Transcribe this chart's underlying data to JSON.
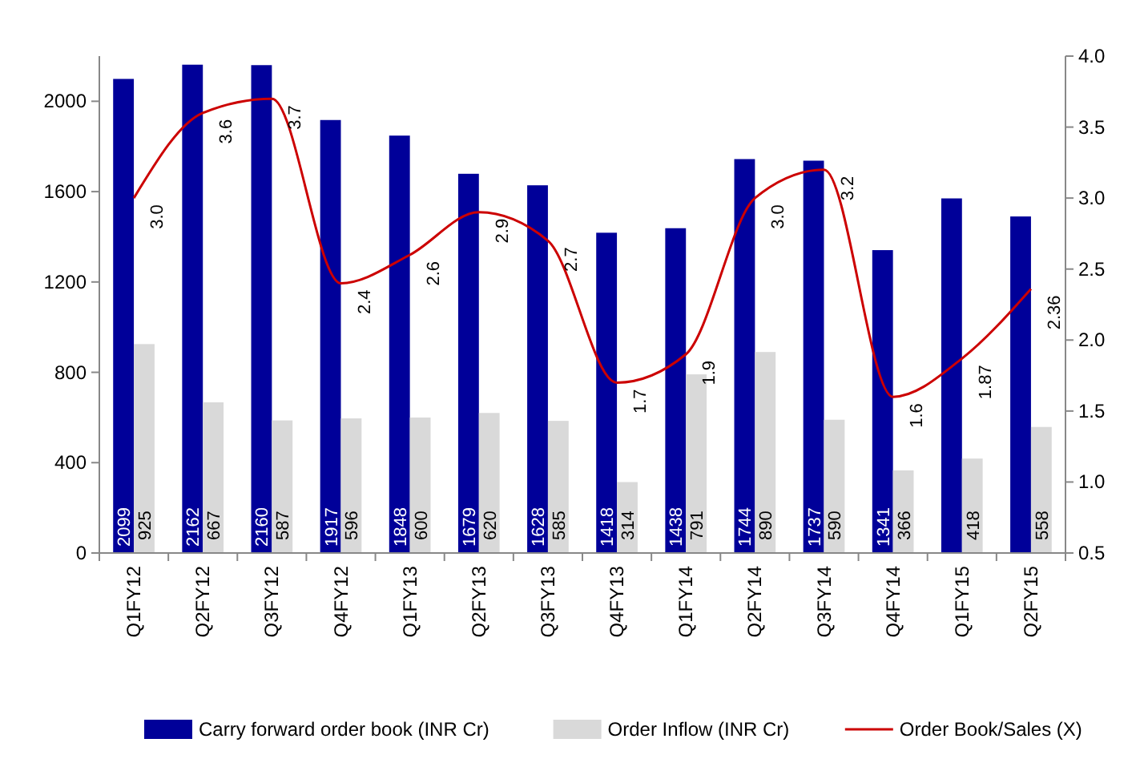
{
  "chart_data": {
    "type": "bar",
    "categories": [
      "Q1FY12",
      "Q2FY12",
      "Q3FY12",
      "Q4FY12",
      "Q1FY13",
      "Q2FY13",
      "Q3FY13",
      "Q4FY13",
      "Q1FY14",
      "Q2FY14",
      "Q3FY14",
      "Q4FY14",
      "Q1FY15",
      "Q2FY15"
    ],
    "series": [
      {
        "name": "Carry forward order book (INR Cr)",
        "color": "#000099",
        "values": [
          2099,
          2162,
          2160,
          1917,
          1848,
          1679,
          1628,
          1418,
          1438,
          1744,
          1737,
          1341,
          1570,
          1490
        ],
        "value_labels": [
          "2099",
          "2162",
          "2160",
          "1917",
          "1848",
          "1679",
          "1628",
          "1418",
          "1438",
          "1744",
          "1737",
          "1341",
          null,
          null
        ]
      },
      {
        "name": "Order Inflow (INR Cr)",
        "color": "#d9d9d9",
        "values": [
          925,
          667,
          587,
          596,
          600,
          620,
          585,
          314,
          791,
          890,
          590,
          366,
          418,
          558
        ],
        "value_labels": [
          "925",
          "667",
          "587",
          "596",
          "600",
          "620",
          "585",
          "314",
          "791",
          "890",
          "590",
          "366",
          "418",
          "558"
        ]
      },
      {
        "name": "Order Book/Sales (X)",
        "type": "line",
        "axis": "y2",
        "color": "#cc0000",
        "values": [
          3.0,
          3.6,
          3.7,
          2.4,
          2.6,
          2.9,
          2.7,
          1.7,
          1.9,
          3.0,
          3.2,
          1.6,
          1.87,
          2.36
        ],
        "value_labels": [
          "3.0",
          "3.6",
          "3.7",
          "2.4",
          "2.6",
          "2.9",
          "2.7",
          "1.7",
          "1.9",
          "3.0",
          "3.2",
          "1.6",
          "1.87",
          "2.36"
        ]
      }
    ],
    "ylim": [
      0,
      2200
    ],
    "yticks": [
      0,
      400,
      800,
      1200,
      1600,
      2000
    ],
    "y2lim": [
      0.5,
      4.0
    ],
    "y2ticks": [
      {
        "value": 0.5,
        "label": "0.5"
      },
      {
        "value": 1,
        "label": "1.0"
      },
      {
        "value": 1.5,
        "label": "1.5"
      },
      {
        "value": 2,
        "label": "2.0"
      },
      {
        "value": 2.5,
        "label": "2.5"
      },
      {
        "value": 3,
        "label": "3.0"
      },
      {
        "value": 3.5,
        "label": "3.5"
      },
      {
        "value": 4,
        "label": "4.0"
      }
    ],
    "grid": false,
    "legend": "bottom",
    "marker": "none",
    "line_style": "solid"
  }
}
